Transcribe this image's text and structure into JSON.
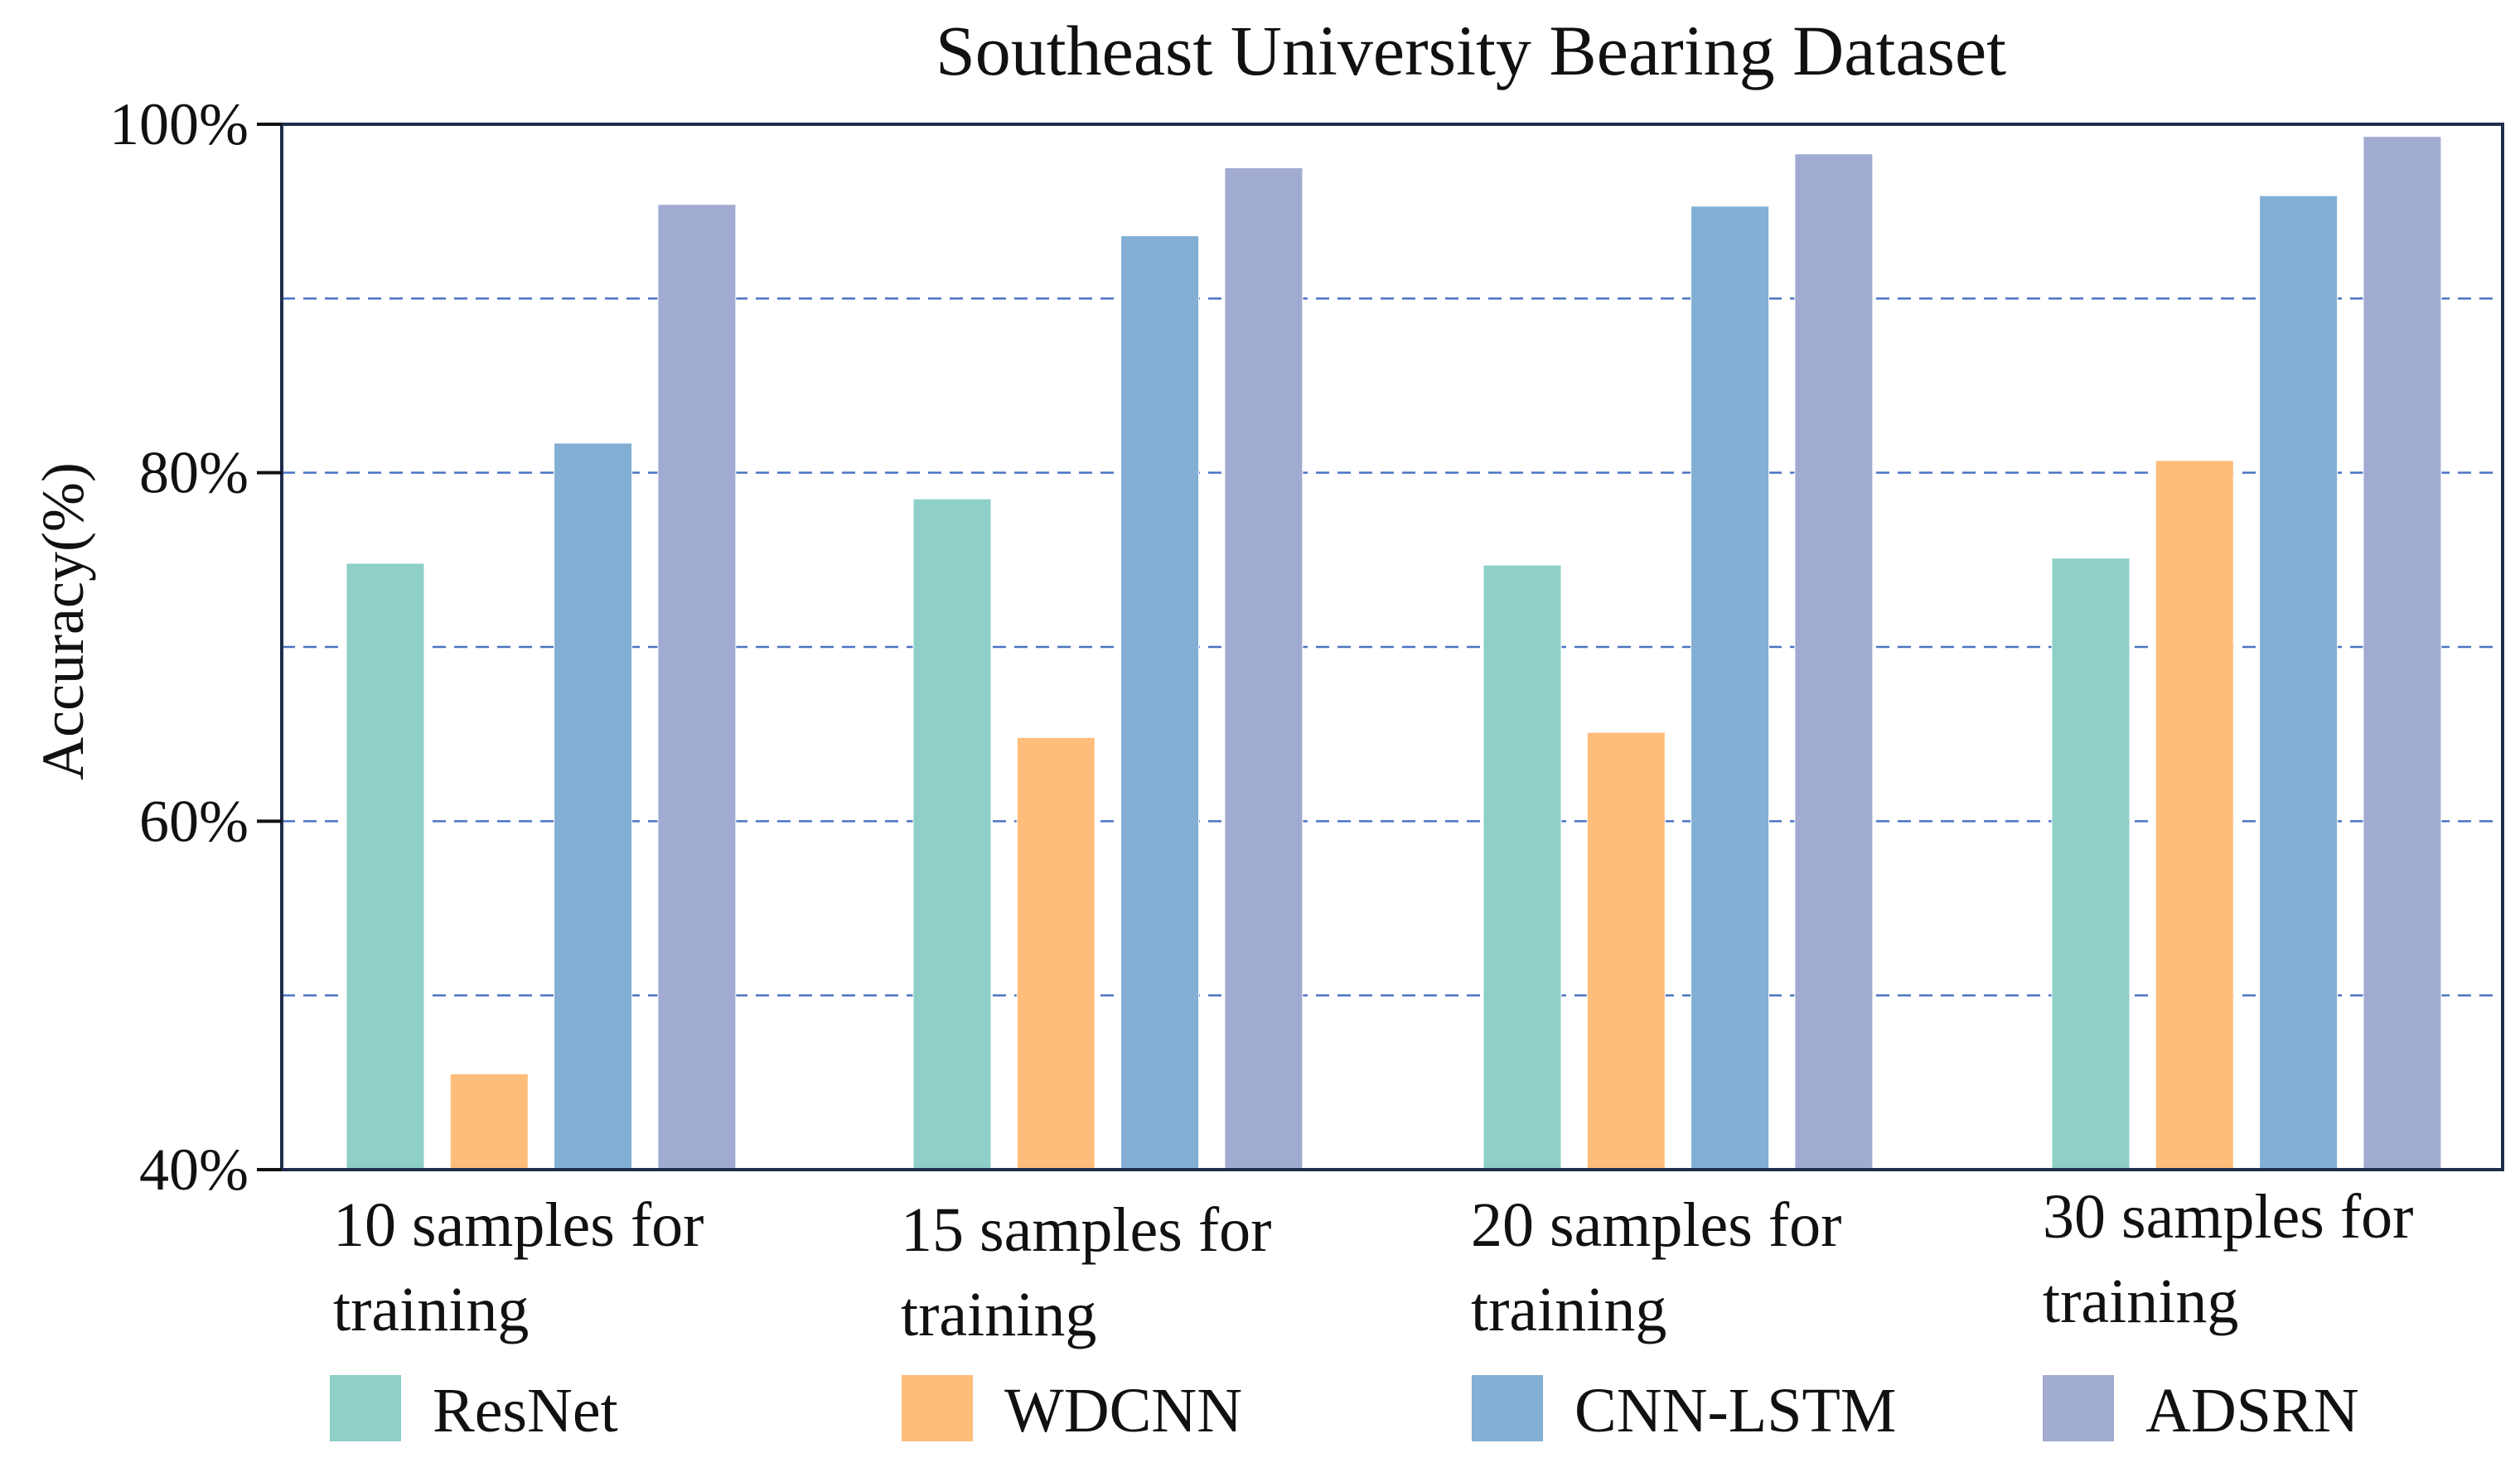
{
  "chart_data": {
    "type": "bar",
    "title": "Southeast University Bearing Dataset",
    "xlabel": "",
    "ylabel": "Accuracy(%)",
    "ylim": [
      40,
      100
    ],
    "yticks": [
      40,
      60,
      80,
      100
    ],
    "ytick_labels": [
      "40%",
      "60%",
      "80%",
      "100%"
    ],
    "grid_values": [
      50,
      60,
      70,
      80,
      90
    ],
    "grid": true,
    "legend_position": "bottom",
    "categories": [
      [
        "10 samples for",
        "training"
      ],
      [
        "15 samples for",
        "training"
      ],
      [
        "20 samples for",
        "training"
      ],
      [
        "30 samples for",
        "training"
      ]
    ],
    "series": [
      {
        "name": "ResNet",
        "color": "#8ecfc8",
        "values": [
          74.8,
          78.5,
          74.7,
          75.1
        ]
      },
      {
        "name": "WDCNN",
        "color": "#ffbd7b",
        "values": [
          45.5,
          64.8,
          65.1,
          80.7
        ]
      },
      {
        "name": "CNN-LSTM",
        "color": "#82afd3",
        "values": [
          81.7,
          93.6,
          95.3,
          95.9
        ]
      },
      {
        "name": "ADSRN",
        "color": "#a1aad1",
        "values": [
          95.4,
          97.5,
          98.3,
          99.3
        ]
      }
    ]
  }
}
